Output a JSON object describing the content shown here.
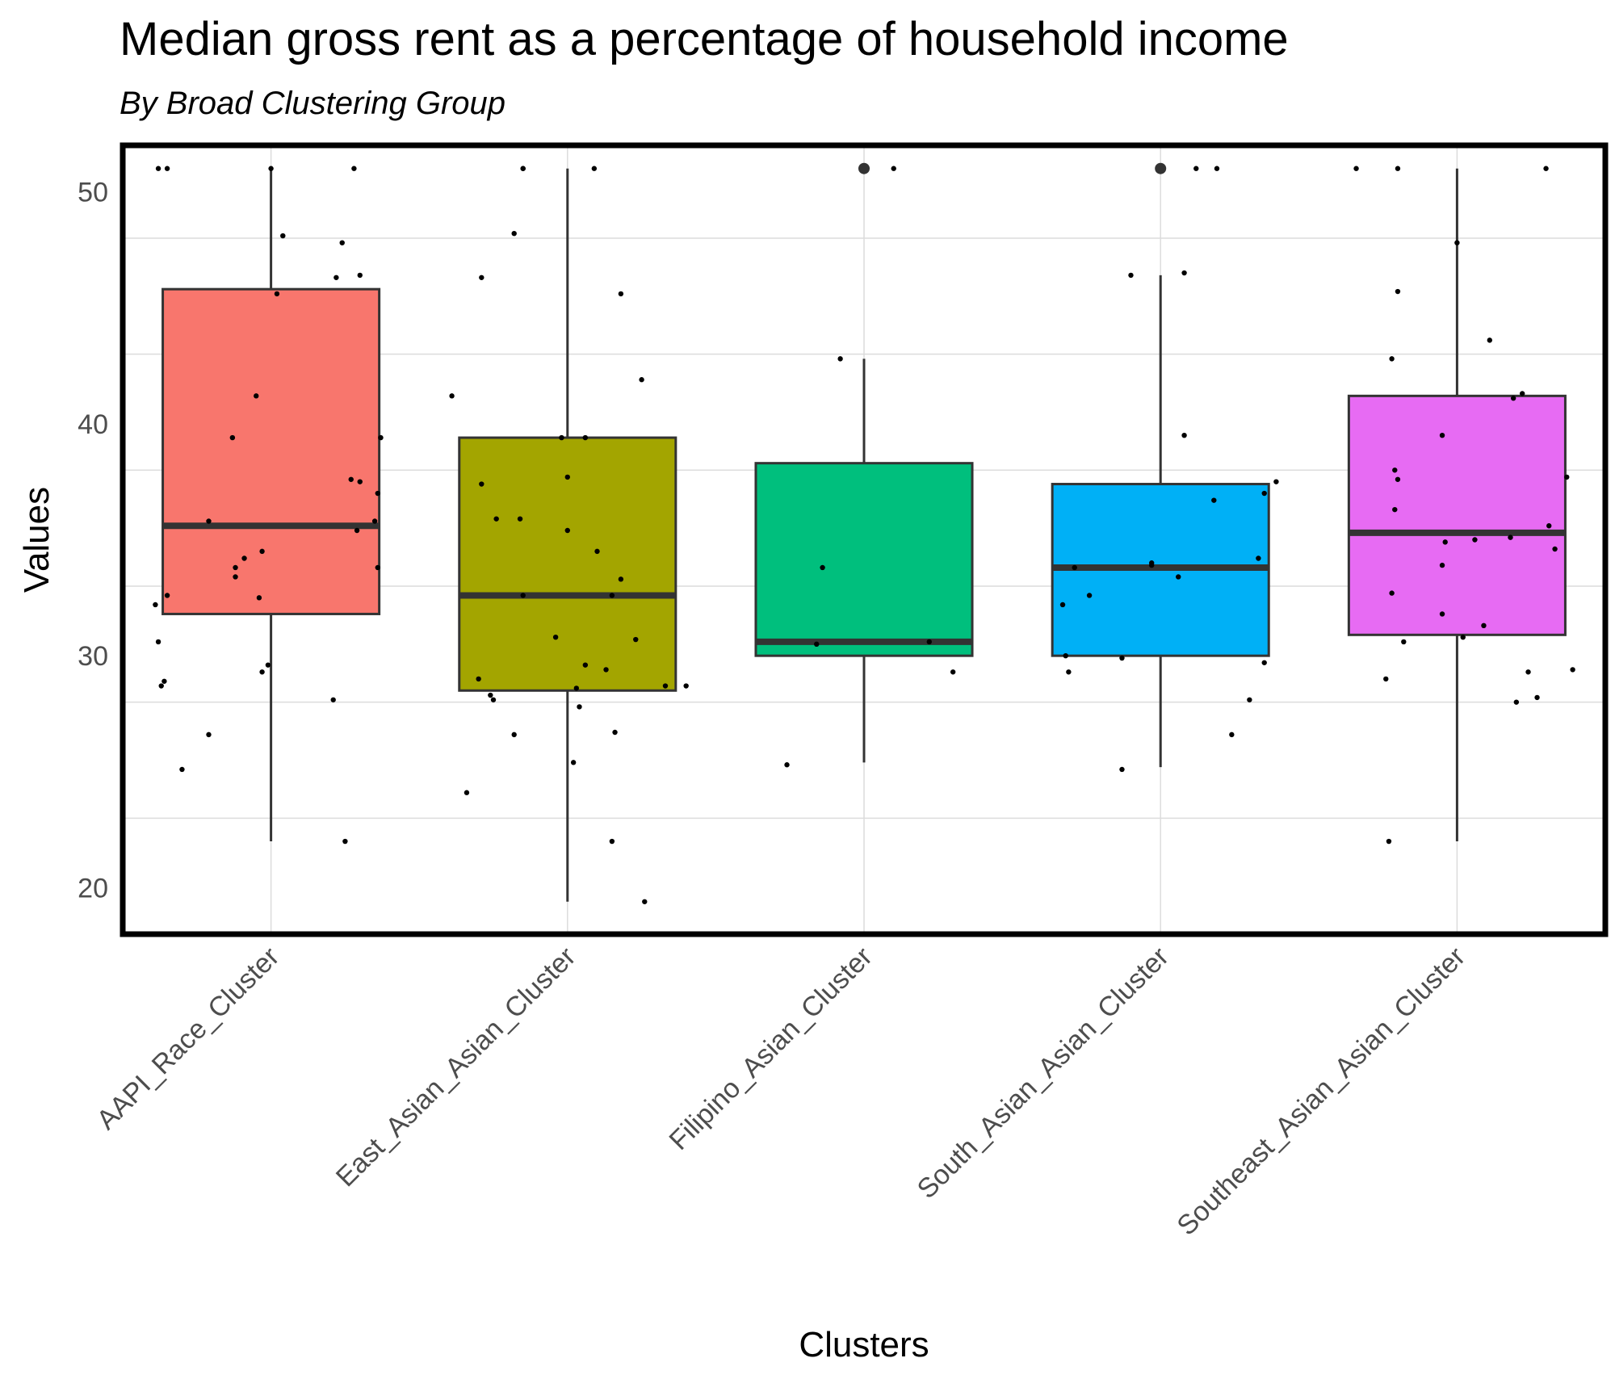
{
  "chart_data": {
    "type": "boxplot",
    "title": "Median gross rent as a percentage of household income",
    "subtitle": "By Broad Clustering Group",
    "xlabel": "Clusters",
    "ylabel": "Values",
    "ylim": [
      18,
      52
    ],
    "yticks": [
      "20",
      "30",
      "40",
      "50"
    ],
    "grid": true,
    "legend": "none",
    "categories": [
      "AAPI_Race_Cluster",
      "East_Asian_Asian_Cluster",
      "Filipino_Asian_Cluster",
      "South_Asian_Asian_Cluster",
      "Southeast_Asian_Asian_Cluster"
    ],
    "colors": [
      "#F8766D",
      "#A3A500",
      "#00BF7D",
      "#00B0F6",
      "#E76BF3"
    ],
    "boxes": [
      {
        "whisker_low": 22.0,
        "q1": 31.8,
        "median": 35.6,
        "q3": 45.8,
        "whisker_high": 51.0,
        "outliers": []
      },
      {
        "whisker_low": 19.4,
        "q1": 28.5,
        "median": 32.6,
        "q3": 39.4,
        "whisker_high": 51.0,
        "outliers": []
      },
      {
        "whisker_low": 25.4,
        "q1": 30.0,
        "median": 30.6,
        "q3": 38.3,
        "whisker_high": 42.8,
        "outliers": [
          51.0
        ]
      },
      {
        "whisker_low": 25.2,
        "q1": 30.0,
        "median": 33.8,
        "q3": 37.4,
        "whisker_high": 46.4,
        "outliers": [
          51.0
        ]
      },
      {
        "whisker_low": 22.0,
        "q1": 30.9,
        "median": 35.3,
        "q3": 41.2,
        "whisker_high": 51.0,
        "outliers": []
      }
    ],
    "jitter_points": [
      [
        [
          -0.38,
          51
        ],
        [
          -0.35,
          51
        ],
        [
          0,
          51
        ],
        [
          0.28,
          51
        ],
        [
          0.04,
          48.1
        ],
        [
          0.24,
          47.8
        ],
        [
          0.22,
          46.3
        ],
        [
          0.3,
          46.4
        ],
        [
          0.02,
          45.6
        ],
        [
          -0.05,
          41.2
        ],
        [
          -0.13,
          39.4
        ],
        [
          0.37,
          39.4
        ],
        [
          0.27,
          37.6
        ],
        [
          0.3,
          37.5
        ],
        [
          0.36,
          37
        ],
        [
          0.35,
          35.8
        ],
        [
          0.29,
          35.4
        ],
        [
          -0.21,
          35.8
        ],
        [
          -0.09,
          34.2
        ],
        [
          -0.12,
          33.8
        ],
        [
          -0.12,
          33.4
        ],
        [
          -0.03,
          34.5
        ],
        [
          0.36,
          33.8
        ],
        [
          -0.35,
          32.6
        ],
        [
          -0.04,
          32.5
        ],
        [
          -0.39,
          32.2
        ],
        [
          -0.38,
          30.6
        ],
        [
          -0.01,
          29.6
        ],
        [
          -0.03,
          29.3
        ],
        [
          -0.36,
          28.9
        ],
        [
          -0.37,
          28.7
        ],
        [
          0.21,
          28.1
        ],
        [
          -0.21,
          26.6
        ],
        [
          -0.3,
          25.1
        ],
        [
          0.25,
          22
        ]
      ],
      [
        [
          -0.15,
          51
        ],
        [
          -0.15,
          51
        ],
        [
          0.09,
          51
        ],
        [
          -0.18,
          48.2
        ],
        [
          -0.29,
          46.3
        ],
        [
          0.18,
          45.6
        ],
        [
          -0.39,
          41.2
        ],
        [
          0.25,
          41.9
        ],
        [
          -0.02,
          39.4
        ],
        [
          0.06,
          39.4
        ],
        [
          0,
          37.7
        ],
        [
          -0.29,
          37.4
        ],
        [
          -0.24,
          35.9
        ],
        [
          -0.16,
          35.9
        ],
        [
          0,
          35.4
        ],
        [
          0.1,
          34.5
        ],
        [
          0.18,
          33.3
        ],
        [
          -0.15,
          32.6
        ],
        [
          0.15,
          32.6
        ],
        [
          -0.04,
          30.8
        ],
        [
          0.23,
          30.7
        ],
        [
          0.06,
          29.6
        ],
        [
          0.13,
          29.4
        ],
        [
          -0.3,
          29
        ],
        [
          0.33,
          28.7
        ],
        [
          0.4,
          28.7
        ],
        [
          0.03,
          28.6
        ],
        [
          -0.26,
          28.3
        ],
        [
          -0.25,
          28.1
        ],
        [
          0.04,
          27.8
        ],
        [
          0.16,
          26.7
        ],
        [
          -0.18,
          26.6
        ],
        [
          0.02,
          25.4
        ],
        [
          -0.34,
          24.1
        ],
        [
          0.15,
          22
        ],
        [
          0.26,
          19.4
        ]
      ],
      [
        [
          0.1,
          51
        ],
        [
          -0.08,
          42.8
        ],
        [
          -0.14,
          33.8
        ],
        [
          -0.16,
          30.5
        ],
        [
          0.22,
          30.6
        ],
        [
          0.3,
          29.3
        ],
        [
          -0.26,
          25.3
        ]
      ],
      [
        [
          0.12,
          51
        ],
        [
          0.19,
          51
        ],
        [
          0.08,
          46.5
        ],
        [
          -0.1,
          46.4
        ],
        [
          0.08,
          39.5
        ],
        [
          0.18,
          36.7
        ],
        [
          0.39,
          37.5
        ],
        [
          0.35,
          37
        ],
        [
          0.33,
          34.2
        ],
        [
          -0.24,
          32.6
        ],
        [
          -0.33,
          32.2
        ],
        [
          0.06,
          33.4
        ],
        [
          -0.03,
          34
        ],
        [
          -0.29,
          33.8
        ],
        [
          -0.32,
          30
        ],
        [
          -0.13,
          29.9
        ],
        [
          -0.31,
          29.3
        ],
        [
          0.35,
          29.7
        ],
        [
          0.3,
          28.1
        ],
        [
          0.24,
          26.6
        ],
        [
          -0.13,
          25.1
        ],
        [
          -0.03,
          33.9
        ]
      ],
      [
        [
          -0.34,
          51
        ],
        [
          -0.2,
          51
        ],
        [
          0.3,
          51
        ],
        [
          -0.2,
          45.7
        ],
        [
          0,
          47.8
        ],
        [
          -0.22,
          42.8
        ],
        [
          0.11,
          43.6
        ],
        [
          0.22,
          41.3
        ],
        [
          0.19,
          41.1
        ],
        [
          -0.05,
          39.5
        ],
        [
          -0.21,
          38
        ],
        [
          -0.2,
          37.6
        ],
        [
          0.37,
          37.7
        ],
        [
          -0.21,
          36.3
        ],
        [
          0.31,
          35.6
        ],
        [
          0.33,
          34.6
        ],
        [
          0.18,
          35.1
        ],
        [
          -0.04,
          34.9
        ],
        [
          0.06,
          35
        ],
        [
          -0.05,
          33.9
        ],
        [
          0.09,
          31.3
        ],
        [
          -0.05,
          31.8
        ],
        [
          -0.22,
          32.7
        ],
        [
          0.02,
          30.8
        ],
        [
          -0.18,
          30.6
        ],
        [
          0.39,
          29.4
        ],
        [
          0.24,
          29.3
        ],
        [
          -0.24,
          29
        ],
        [
          0.2,
          28
        ],
        [
          0.27,
          28.2
        ],
        [
          -0.23,
          22
        ]
      ]
    ]
  }
}
